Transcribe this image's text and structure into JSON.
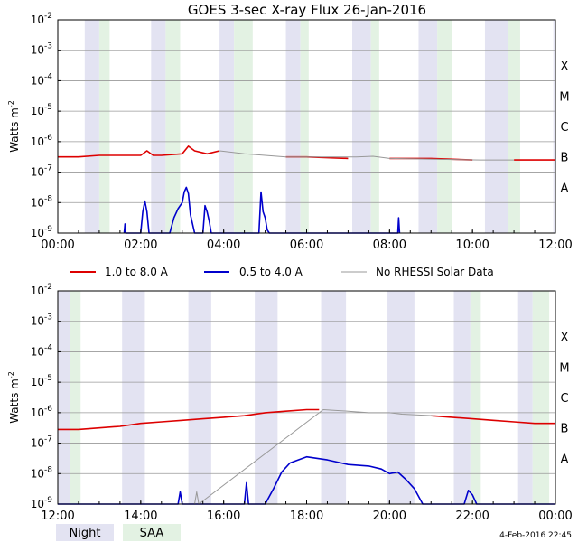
{
  "chart_data": [
    {
      "type": "line",
      "title": "GOES 3-sec X-ray Flux   26-Jan-2016",
      "ylabel_base": "Watts m",
      "ylabel_exp": "-2",
      "y_scale": "log",
      "ylim": [
        1e-09,
        0.01
      ],
      "y_ticks": [
        {
          "base": "10",
          "exp": "-2",
          "value": -2
        },
        {
          "base": "10",
          "exp": "-3",
          "value": -3
        },
        {
          "base": "10",
          "exp": "-4",
          "value": -4
        },
        {
          "base": "10",
          "exp": "-5",
          "value": -5
        },
        {
          "base": "10",
          "exp": "-6",
          "value": -6
        },
        {
          "base": "10",
          "exp": "-7",
          "value": -7
        },
        {
          "base": "10",
          "exp": "-8",
          "value": -8
        },
        {
          "base": "10",
          "exp": "-9",
          "value": -9
        }
      ],
      "flare_classes": [
        {
          "label": "X",
          "log": -3.5
        },
        {
          "label": "M",
          "log": -4.5
        },
        {
          "label": "C",
          "log": -5.5
        },
        {
          "label": "B",
          "log": -6.5
        },
        {
          "label": "A",
          "log": -7.5
        }
      ],
      "xlim_hours": [
        0,
        12
      ],
      "x_ticks": [
        {
          "label": "00:00",
          "hour": 0
        },
        {
          "label": "02:00",
          "hour": 2
        },
        {
          "label": "04:00",
          "hour": 4
        },
        {
          "label": "06:00",
          "hour": 6
        },
        {
          "label": "08:00",
          "hour": 8
        },
        {
          "label": "10:00",
          "hour": 10
        },
        {
          "label": "12:00",
          "hour": 12
        }
      ],
      "night_intervals_hours": [
        [
          0.65,
          1.0
        ],
        [
          2.25,
          2.6
        ],
        [
          3.9,
          4.25
        ],
        [
          5.5,
          5.85
        ],
        [
          7.1,
          7.55
        ],
        [
          8.7,
          9.15
        ],
        [
          10.3,
          10.85
        ],
        [
          11.95,
          12.0
        ]
      ],
      "saa_intervals_hours": [
        [
          1.0,
          1.25
        ],
        [
          2.6,
          2.95
        ],
        [
          4.25,
          4.7
        ],
        [
          5.85,
          6.05
        ],
        [
          7.55,
          7.75
        ],
        [
          9.15,
          9.5
        ],
        [
          10.85,
          11.15
        ]
      ],
      "series": [
        {
          "name": "1.0 to 8.0 A",
          "color": "#dd0000",
          "x": [
            0,
            0.5,
            1.0,
            1.5,
            2.0,
            2.15,
            2.3,
            2.5,
            3.0,
            3.15,
            3.3,
            3.6,
            3.9,
            4.5,
            5.0,
            5.5,
            6.0,
            7.0,
            8.0,
            9.0,
            10.0,
            11.0,
            12.0
          ],
          "log_values": [
            -6.5,
            -6.5,
            -6.45,
            -6.45,
            -6.45,
            -6.3,
            -6.45,
            -6.45,
            -6.4,
            -6.15,
            -6.3,
            -6.4,
            -6.3,
            -6.4,
            -6.45,
            -6.5,
            -6.5,
            -6.55,
            -6.55,
            -6.55,
            -6.6,
            -6.6,
            -6.6
          ],
          "gap_hours": [
            [
              3.9,
              6.0
            ],
            [
              7.2,
              8.0
            ],
            [
              10.2,
              11.0
            ]
          ]
        },
        {
          "name": "0.5 to 4.0 A",
          "color": "#0000cc",
          "x": [
            1.6,
            1.62,
            1.64,
            2.0,
            2.05,
            2.1,
            2.15,
            2.2,
            2.7,
            2.8,
            2.9,
            3.0,
            3.05,
            3.1,
            3.15,
            3.2,
            3.3,
            3.5,
            3.55,
            3.6,
            3.65,
            3.7,
            4.0,
            4.85,
            4.9,
            4.95,
            5.0,
            5.05,
            5.1,
            8.2,
            8.22,
            8.24
          ],
          "log_values": [
            -9.0,
            -8.7,
            -9.0,
            -9.0,
            -8.3,
            -7.95,
            -8.3,
            -9.0,
            -9.0,
            -8.5,
            -8.2,
            -8.0,
            -7.65,
            -7.5,
            -7.7,
            -8.4,
            -9.0,
            -9.0,
            -8.1,
            -8.3,
            -8.6,
            -9.0,
            -9.0,
            -9.0,
            -7.65,
            -8.3,
            -8.5,
            -8.9,
            -9.0,
            -9.0,
            -8.5,
            -9.0
          ]
        },
        {
          "name": "No RHESSI Solar Data",
          "color": "#999999",
          "x": [
            3.9,
            4.5,
            5.0,
            5.5,
            6.0,
            7.2,
            7.6,
            8.0,
            10.2,
            10.6,
            11.0
          ],
          "log_values": [
            -6.3,
            -6.4,
            -6.45,
            -6.5,
            -6.5,
            -6.5,
            -6.48,
            -6.55,
            -6.6,
            -6.6,
            -6.6
          ]
        }
      ]
    },
    {
      "type": "line",
      "ylabel_base": "Watts m",
      "ylabel_exp": "-2",
      "y_scale": "log",
      "ylim": [
        1e-09,
        0.01
      ],
      "y_ticks": [
        {
          "base": "10",
          "exp": "-2",
          "value": -2
        },
        {
          "base": "10",
          "exp": "-3",
          "value": -3
        },
        {
          "base": "10",
          "exp": "-4",
          "value": -4
        },
        {
          "base": "10",
          "exp": "-5",
          "value": -5
        },
        {
          "base": "10",
          "exp": "-6",
          "value": -6
        },
        {
          "base": "10",
          "exp": "-7",
          "value": -7
        },
        {
          "base": "10",
          "exp": "-8",
          "value": -8
        },
        {
          "base": "10",
          "exp": "-9",
          "value": -9
        }
      ],
      "flare_classes": [
        {
          "label": "X",
          "log": -3.5
        },
        {
          "label": "M",
          "log": -4.5
        },
        {
          "label": "C",
          "log": -5.5
        },
        {
          "label": "B",
          "log": -6.5
        },
        {
          "label": "A",
          "log": -7.5
        }
      ],
      "xlim_hours": [
        12,
        24
      ],
      "x_ticks": [
        {
          "label": "12:00",
          "hour": 12
        },
        {
          "label": "14:00",
          "hour": 14
        },
        {
          "label": "16:00",
          "hour": 16
        },
        {
          "label": "18:00",
          "hour": 18
        },
        {
          "label": "20:00",
          "hour": 20
        },
        {
          "label": "22:00",
          "hour": 22
        },
        {
          "label": "00:00",
          "hour": 24
        }
      ],
      "night_intervals_hours": [
        [
          12.0,
          12.3
        ],
        [
          13.55,
          14.1
        ],
        [
          15.15,
          15.7
        ],
        [
          16.75,
          17.3
        ],
        [
          18.35,
          18.95
        ],
        [
          19.95,
          20.6
        ],
        [
          21.55,
          21.95
        ],
        [
          23.1,
          23.45
        ]
      ],
      "saa_intervals_hours": [
        [
          12.3,
          12.55
        ],
        [
          21.95,
          22.2
        ],
        [
          23.45,
          23.85
        ]
      ],
      "series": [
        {
          "name": "1.0 to 8.0 A",
          "color": "#dd0000",
          "x": [
            12.0,
            12.5,
            13.0,
            13.5,
            14.0,
            14.5,
            15.0,
            15.5,
            16.0,
            16.5,
            17.0,
            17.5,
            18.0,
            18.3,
            18.5,
            18.8,
            19.5,
            20.0,
            20.5,
            21.0,
            21.5,
            22.0,
            22.5,
            23.0,
            23.5,
            24.0
          ],
          "log_values": [
            -6.55,
            -6.55,
            -6.5,
            -6.45,
            -6.35,
            -6.3,
            -6.25,
            -6.2,
            -6.15,
            -6.1,
            -6.0,
            -5.95,
            -5.9,
            -5.9,
            -5.9,
            -5.95,
            -6.0,
            -6.0,
            -6.05,
            -6.1,
            -6.15,
            -6.2,
            -6.25,
            -6.3,
            -6.35,
            -6.35
          ],
          "gap_hours": [
            [
              18.4,
              21.1
            ]
          ]
        },
        {
          "name": "0.5 to 4.0 A",
          "color": "#0000cc",
          "x": [
            12.0,
            14.9,
            14.95,
            15.0,
            16.5,
            16.55,
            16.6,
            17.0,
            17.2,
            17.4,
            17.6,
            18.0,
            18.5,
            19.0,
            19.5,
            19.8,
            20.0,
            20.2,
            20.4,
            20.6,
            20.8,
            21.2,
            21.8,
            21.9,
            22.0,
            22.1,
            24.0
          ],
          "log_values": [
            -9.0,
            -9.0,
            -8.6,
            -9.0,
            -9.0,
            -8.3,
            -9.0,
            -9.0,
            -8.5,
            -7.95,
            -7.65,
            -7.45,
            -7.55,
            -7.7,
            -7.75,
            -7.85,
            -8.0,
            -7.95,
            -8.2,
            -8.5,
            -9.0,
            -9.0,
            -9.0,
            -8.55,
            -8.7,
            -9.0,
            -9.0
          ]
        },
        {
          "name": "No RHESSI Solar Data",
          "color": "#999999",
          "x": [
            15.3,
            15.35,
            15.4,
            18.4,
            19.0,
            19.5,
            20.0,
            20.3,
            21.1
          ],
          "log_values": [
            -9.0,
            -8.6,
            -9.0,
            -5.9,
            -5.95,
            -6.0,
            -6.0,
            -6.05,
            -6.1
          ]
        }
      ]
    }
  ],
  "legend": {
    "items": [
      {
        "label": "1.0 to 8.0 A",
        "color": "#dd0000"
      },
      {
        "label": "0.5 to 4.0 A",
        "color": "#0000cc"
      },
      {
        "label": "No RHESSI Solar Data",
        "color": "#999999"
      }
    ]
  },
  "bottom_legend": {
    "night_label": "Night",
    "saa_label": "SAA",
    "night_color": "#e3e3f2",
    "saa_color": "#e3f2e3"
  },
  "footer": {
    "timestamp": "4-Feb-2016 22:45"
  }
}
